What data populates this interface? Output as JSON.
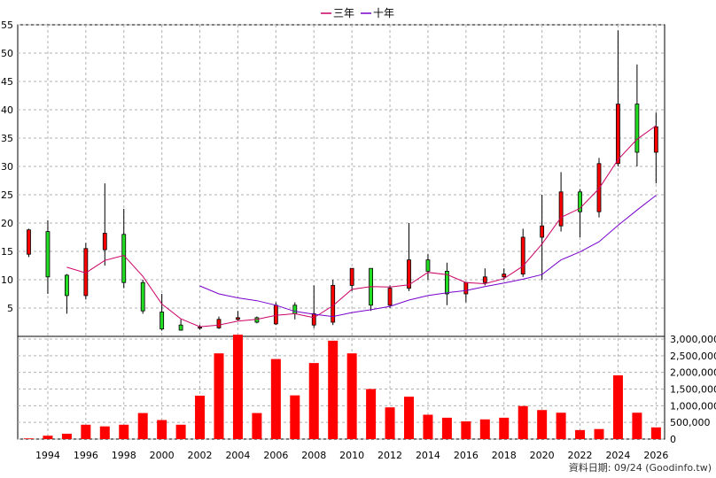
{
  "legend": {
    "series3_label": "三年",
    "series10_label": "十年"
  },
  "credit": "資料日期: 09/24 (Goodinfo.tw)",
  "colors": {
    "up": "#ff0000",
    "down": "#22dd22",
    "line3": "#cc0066",
    "line10": "#7700cc",
    "volume": "#ff0000",
    "grid": "#b0b0b0"
  },
  "chart_data": {
    "type": "candlestick",
    "years": [
      1993,
      1994,
      1995,
      1996,
      1997,
      1998,
      1999,
      2000,
      2001,
      2002,
      2003,
      2004,
      2005,
      2006,
      2007,
      2008,
      2009,
      2010,
      2011,
      2012,
      2013,
      2014,
      2015,
      2016,
      2017,
      2018,
      2019,
      2020,
      2021,
      2022,
      2023,
      2024,
      2025,
      2026
    ],
    "xtick_labels": [
      "1994",
      "1996",
      "1998",
      "2000",
      "2002",
      "2004",
      "2006",
      "2008",
      "2010",
      "2012",
      "2014",
      "2016",
      "2018",
      "2020",
      "2022",
      "2024",
      "2026"
    ],
    "price_axis": {
      "ylim": [
        0,
        55
      ],
      "ticks": [
        5,
        10,
        15,
        20,
        25,
        30,
        35,
        40,
        45,
        50,
        55
      ]
    },
    "volume_axis": {
      "ylim": [
        0,
        3000000
      ],
      "ticks": [
        0,
        500000,
        1000000,
        1500000,
        2000000,
        2500000,
        3000000
      ],
      "tick_labels": [
        "0",
        "500,000",
        "1,000,000",
        "1,500,000",
        "2,000,000",
        "2,500,000",
        "3,000,000"
      ]
    },
    "candles": [
      {
        "o": 14.5,
        "h": 19.0,
        "l": 14.0,
        "c": 18.8
      },
      {
        "o": 18.5,
        "h": 20.5,
        "l": 7.5,
        "c": 10.5
      },
      {
        "o": 10.8,
        "h": 11.0,
        "l": 4.0,
        "c": 7.2
      },
      {
        "o": 7.2,
        "h": 16.5,
        "l": 6.5,
        "c": 15.5
      },
      {
        "o": 15.3,
        "h": 27.0,
        "l": 12.5,
        "c": 18.2
      },
      {
        "o": 18.0,
        "h": 22.5,
        "l": 8.5,
        "c": 9.5
      },
      {
        "o": 9.5,
        "h": 10.0,
        "l": 4.0,
        "c": 4.5
      },
      {
        "o": 4.3,
        "h": 7.5,
        "l": 1.0,
        "c": 1.3
      },
      {
        "o": 2.0,
        "h": 3.0,
        "l": 1.0,
        "c": 1.1
      },
      {
        "o": 1.5,
        "h": 2.0,
        "l": 1.2,
        "c": 1.6
      },
      {
        "o": 1.5,
        "h": 3.5,
        "l": 1.3,
        "c": 3.0
      },
      {
        "o": 3.0,
        "h": 4.5,
        "l": 2.8,
        "c": 3.3
      },
      {
        "o": 3.3,
        "h": 3.5,
        "l": 2.3,
        "c": 2.5
      },
      {
        "o": 2.2,
        "h": 6.0,
        "l": 2.0,
        "c": 5.5
      },
      {
        "o": 5.5,
        "h": 6.0,
        "l": 3.0,
        "c": 4.0
      },
      {
        "o": 2.0,
        "h": 9.0,
        "l": 1.5,
        "c": 4.0
      },
      {
        "o": 2.5,
        "h": 10.0,
        "l": 2.0,
        "c": 9.0
      },
      {
        "o": 9.0,
        "h": 12.0,
        "l": 8.0,
        "c": 12.0
      },
      {
        "o": 12.0,
        "h": 12.0,
        "l": 4.5,
        "c": 5.5
      },
      {
        "o": 5.5,
        "h": 9.0,
        "l": 5.0,
        "c": 8.5
      },
      {
        "o": 8.5,
        "h": 20.0,
        "l": 8.0,
        "c": 13.5
      },
      {
        "o": 13.5,
        "h": 14.5,
        "l": 10.0,
        "c": 11.5
      },
      {
        "o": 11.5,
        "h": 13.0,
        "l": 5.5,
        "c": 7.5
      },
      {
        "o": 7.5,
        "h": 9.5,
        "l": 6.0,
        "c": 9.5
      },
      {
        "o": 9.5,
        "h": 12.0,
        "l": 9.0,
        "c": 10.5
      },
      {
        "o": 10.5,
        "h": 12.0,
        "l": 10.0,
        "c": 11.0
      },
      {
        "o": 11.0,
        "h": 19.0,
        "l": 10.5,
        "c": 17.5
      },
      {
        "o": 17.5,
        "h": 25.0,
        "l": 10.0,
        "c": 19.5
      },
      {
        "o": 19.5,
        "h": 29.0,
        "l": 18.5,
        "c": 25.5
      },
      {
        "o": 25.5,
        "h": 26.0,
        "l": 17.5,
        "c": 22.0
      },
      {
        "o": 22.0,
        "h": 31.5,
        "l": 21.0,
        "c": 30.5
      },
      {
        "o": 30.5,
        "h": 54.0,
        "l": 30.0,
        "c": 41.0
      },
      {
        "o": 41.0,
        "h": 48.0,
        "l": 30.0,
        "c": 32.5
      },
      {
        "o": 32.5,
        "h": 39.5,
        "l": 27.0,
        "c": 37.0
      }
    ],
    "volume": [
      20000,
      100000,
      160000,
      430000,
      380000,
      430000,
      780000,
      570000,
      430000,
      1300000,
      2570000,
      3130000,
      780000,
      2400000,
      1310000,
      2280000,
      2950000,
      2570000,
      1500000,
      950000,
      1270000,
      730000,
      640000,
      530000,
      590000,
      640000,
      990000,
      870000,
      790000,
      270000,
      300000,
      1910000,
      790000,
      350000
    ],
    "series": [
      {
        "name": "三年",
        "values": [
          null,
          null,
          12.2,
          11.2,
          13.4,
          14.3,
          10.6,
          5.7,
          3.1,
          1.7,
          2.0,
          2.7,
          3.0,
          3.7,
          4.0,
          3.3,
          5.4,
          8.3,
          8.8,
          8.7,
          9.1,
          11.3,
          10.9,
          9.5,
          9.3,
          10.2,
          12.4,
          16.3,
          21.0,
          22.6,
          26.1,
          31.2,
          34.8,
          37.2
        ]
      },
      {
        "name": "十年",
        "values": [
          null,
          null,
          null,
          null,
          null,
          null,
          null,
          null,
          null,
          8.9,
          7.5,
          6.8,
          6.3,
          5.5,
          4.4,
          3.9,
          3.5,
          4.2,
          4.7,
          5.3,
          6.4,
          7.2,
          7.7,
          8.1,
          8.8,
          9.4,
          10.1,
          10.9,
          13.5,
          14.9,
          16.7,
          19.6,
          22.3,
          24.9
        ]
      }
    ]
  }
}
